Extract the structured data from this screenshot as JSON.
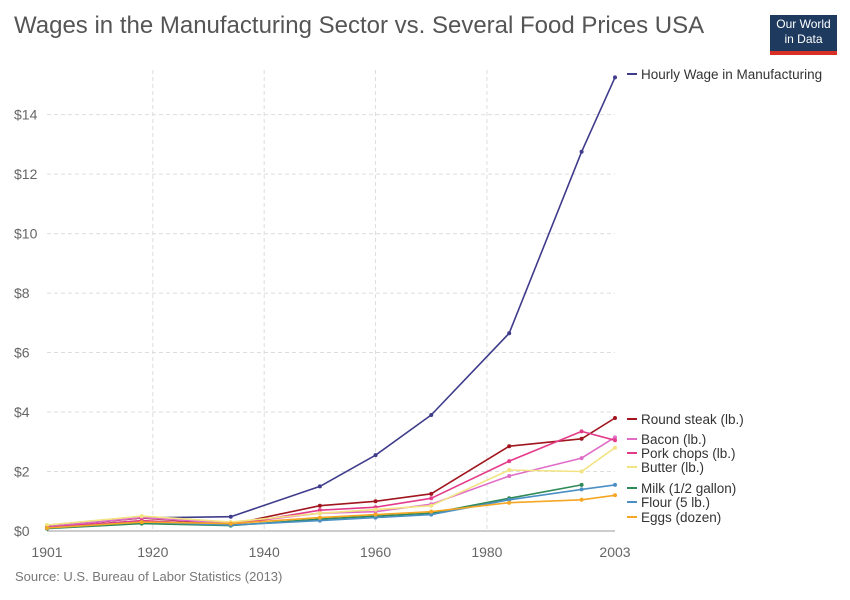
{
  "header": {
    "title": "Wages in the Manufacturing Sector vs. Several Food Prices USA",
    "logo_line1": "Our World",
    "logo_line2": "in Data"
  },
  "footer": {
    "source": "Source: U.S. Bureau of Labor Statistics (2013)"
  },
  "chart_data": {
    "type": "line",
    "title": "Wages in the Manufacturing Sector vs. Several Food Prices USA",
    "xlabel": "",
    "ylabel": "",
    "xlim": [
      1901,
      2003
    ],
    "ylim": [
      0,
      15.5
    ],
    "x_ticks": [
      1901,
      1920,
      1940,
      1960,
      1980,
      2003
    ],
    "y_ticks": [
      0,
      2,
      4,
      6,
      8,
      10,
      12,
      14
    ],
    "y_tick_labels": [
      "$0",
      "$2",
      "$4",
      "$6",
      "$8",
      "$10",
      "$12",
      "$14"
    ],
    "grid": true,
    "legend": "right, labels at line ends",
    "series": [
      {
        "name": "Hourly Wage in Manufacturing",
        "color": "#3f3c8c",
        "x": [
          1901,
          1918,
          1934,
          1950,
          1960,
          1970,
          1984,
          1997,
          2003
        ],
        "y": [
          0.15,
          0.44,
          0.48,
          1.5,
          2.55,
          3.9,
          6.65,
          12.75,
          15.25
        ]
      },
      {
        "name": "Round steak (lb.)",
        "color": "#a0151e",
        "x": [
          1901,
          1918,
          1934,
          1950,
          1960,
          1970,
          1984,
          1997,
          2003
        ],
        "y": [
          0.14,
          0.44,
          0.22,
          0.85,
          1.0,
          1.25,
          2.85,
          3.1,
          3.8
        ]
      },
      {
        "name": "Bacon (lb.)",
        "color": "#e06cc7",
        "x": [
          1901,
          1918,
          1934,
          1950,
          1960,
          1970,
          1984,
          1997,
          2003
        ],
        "y": [
          0.14,
          0.45,
          0.25,
          0.6,
          0.65,
          0.9,
          1.85,
          2.45,
          3.15
        ]
      },
      {
        "name": "Pork chops (lb.)",
        "color": "#e33b8a",
        "x": [
          1901,
          1918,
          1934,
          1950,
          1960,
          1970,
          1984,
          1997,
          2003
        ],
        "y": [
          0.12,
          0.35,
          0.2,
          0.7,
          0.8,
          1.1,
          2.35,
          3.35,
          3.05
        ]
      },
      {
        "name": "Butter (lb.)",
        "color": "#f2e383",
        "x": [
          1901,
          1918,
          1934,
          1950,
          1960,
          1970,
          1984,
          1997,
          2003
        ],
        "y": [
          0.2,
          0.5,
          0.3,
          0.6,
          0.72,
          0.85,
          2.05,
          2.0,
          2.8
        ]
      },
      {
        "name": "Milk (1/2 gallon)",
        "color": "#2e8a58",
        "x": [
          1901,
          1918,
          1934,
          1950,
          1960,
          1970,
          1984,
          1997
        ],
        "y": [
          0.08,
          0.25,
          0.18,
          0.4,
          0.5,
          0.6,
          1.1,
          1.55
        ]
      },
      {
        "name": "Flour (5 lb.)",
        "color": "#4a90c4",
        "x": [
          1901,
          1918,
          1934,
          1950,
          1960,
          1970,
          1984,
          1997,
          2003
        ],
        "y": [
          0.1,
          0.3,
          0.2,
          0.35,
          0.45,
          0.55,
          1.05,
          1.4,
          1.55
        ]
      },
      {
        "name": "Eggs (dozen)",
        "color": "#f5a623",
        "x": [
          1901,
          1918,
          1934,
          1950,
          1960,
          1970,
          1984,
          1997,
          2003
        ],
        "y": [
          0.1,
          0.3,
          0.25,
          0.45,
          0.55,
          0.65,
          0.95,
          1.05,
          1.2
        ]
      }
    ]
  }
}
